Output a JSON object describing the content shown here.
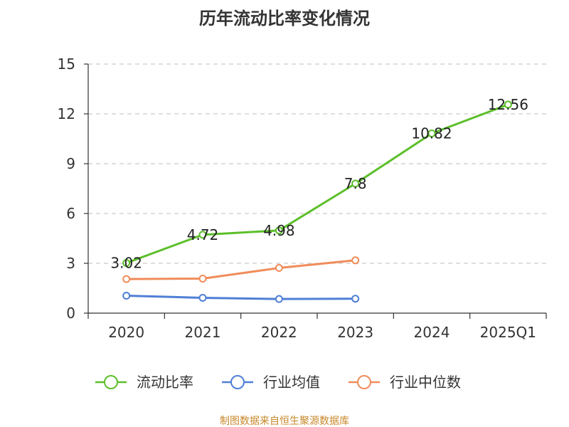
{
  "chart_data": {
    "type": "line",
    "title": "历年流动比率变化情况",
    "categories": [
      "2020",
      "2021",
      "2022",
      "2023",
      "2024",
      "2025Q1"
    ],
    "ylim": [
      0,
      15
    ],
    "yticks": [
      0,
      3,
      6,
      9,
      12,
      15
    ],
    "grid": true,
    "legend_position": "bottom-center",
    "series": [
      {
        "name": "流动比率",
        "color": "#5cbf2a",
        "values": [
          3.02,
          4.72,
          4.98,
          7.8,
          10.82,
          12.56
        ],
        "labels": [
          "3.02",
          "4.72",
          "4.98",
          "7.8",
          "10.82",
          "12.56"
        ],
        "show_labels": true
      },
      {
        "name": "行业均值",
        "color": "#4f7fd6",
        "values": [
          1.05,
          0.92,
          0.85,
          0.87,
          null,
          null
        ],
        "show_labels": false
      },
      {
        "name": "行业中位数",
        "color": "#f08c5a",
        "values": [
          2.05,
          2.08,
          2.72,
          3.18,
          null,
          null
        ],
        "show_labels": false
      }
    ]
  },
  "source": "制图数据来自恒生聚源数据库"
}
